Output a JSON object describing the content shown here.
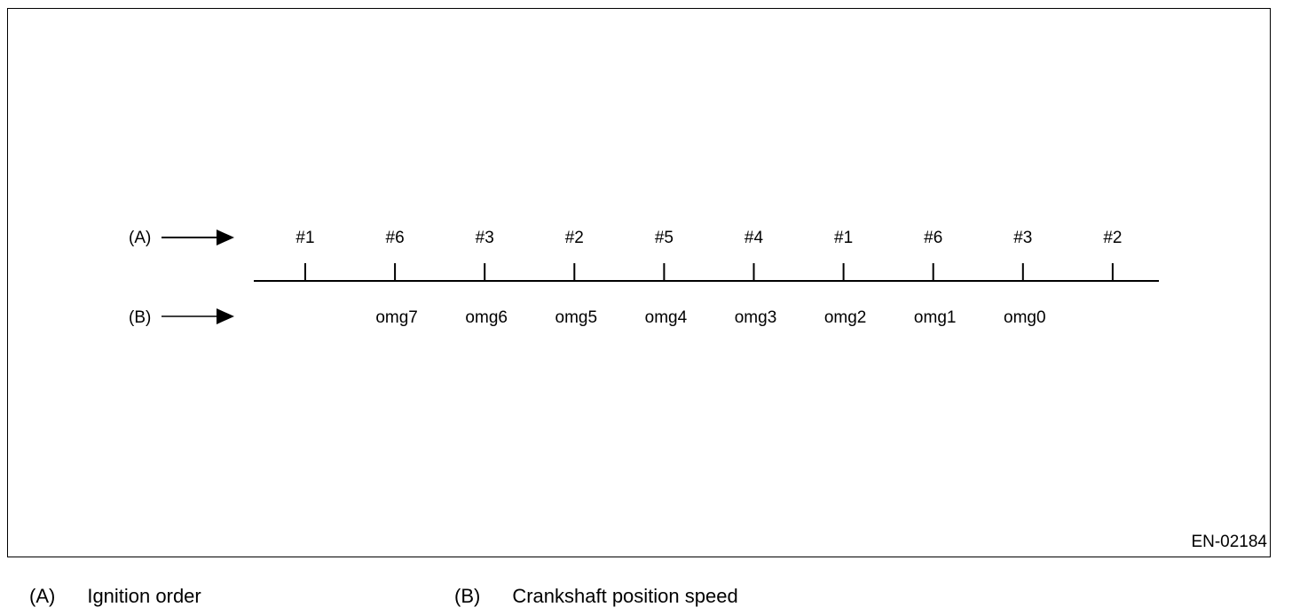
{
  "diagram": {
    "row_a": {
      "tag": "(A)",
      "labels": [
        "#1",
        "#6",
        "#3",
        "#2",
        "#5",
        "#4",
        "#1",
        "#6",
        "#3",
        "#2"
      ]
    },
    "row_b": {
      "tag": "(B)",
      "labels": [
        "omg7",
        "omg6",
        "omg5",
        "omg4",
        "omg3",
        "omg2",
        "omg1",
        "omg0"
      ]
    },
    "figure_id": "EN-02184"
  },
  "legend": [
    {
      "key": "(A)",
      "text": "Ignition order"
    },
    {
      "key": "(B)",
      "text": "Crankshaft position speed"
    }
  ]
}
